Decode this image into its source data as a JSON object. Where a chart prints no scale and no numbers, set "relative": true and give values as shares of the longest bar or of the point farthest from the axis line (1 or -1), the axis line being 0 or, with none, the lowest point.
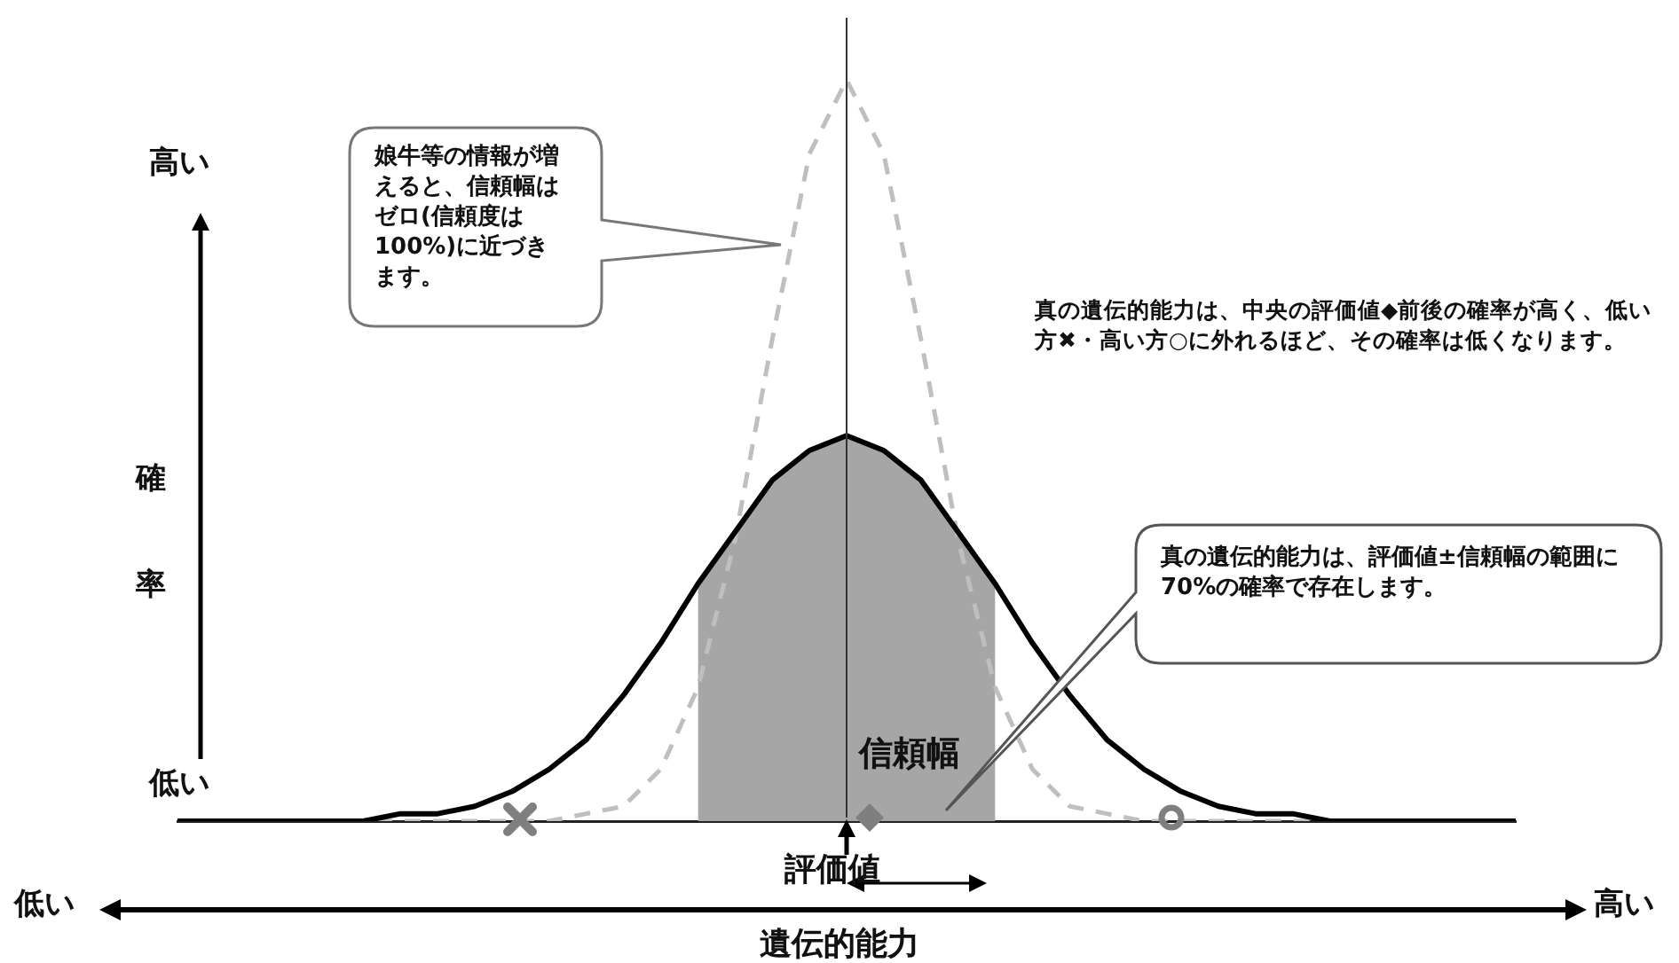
{
  "chart_data": {
    "type": "line",
    "relative": true,
    "xlabel": "遺伝的能力",
    "ylabel": "確率",
    "legend": false,
    "grid": false,
    "marker": "none",
    "categories": [
      null,
      null,
      null,
      null,
      null,
      null,
      null,
      null,
      null,
      null,
      null,
      null,
      null,
      null,
      null,
      null,
      null,
      null,
      null,
      null,
      null,
      null,
      null,
      null,
      null,
      null,
      null,
      null,
      null,
      null,
      null,
      null,
      null,
      null,
      null,
      null,
      null
    ],
    "series": [
      {
        "type": "area",
        "color": "#a6a6a6",
        "values": [
          null,
          null,
          null,
          null,
          null,
          null,
          null,
          null,
          null,
          null,
          null,
          null,
          null,
          null,
          0.32,
          0.39,
          0.46,
          0.5,
          0.52,
          0.5,
          0.46,
          0.39,
          0.32,
          null,
          null,
          null,
          null,
          null,
          null,
          null,
          null,
          null,
          null,
          null,
          null,
          null,
          null
        ]
      },
      {
        "type": "line",
        "color": "#000000",
        "line_style": "solid",
        "values": [
          0,
          0,
          0,
          0,
          0,
          0,
          0.01,
          0.01,
          0.02,
          0.04,
          0.07,
          0.11,
          0.17,
          0.24,
          0.32,
          0.39,
          0.46,
          0.5,
          0.52,
          0.5,
          0.46,
          0.39,
          0.32,
          0.24,
          0.17,
          0.11,
          0.07,
          0.04,
          0.02,
          0.01,
          0.01,
          0,
          0,
          0,
          0,
          0,
          0
        ]
      },
      {
        "type": "line",
        "color": "#bfbfbf",
        "line_style": "dashed",
        "values": [
          0,
          0,
          0,
          0,
          0,
          0,
          0,
          0,
          0,
          0,
          0,
          0.01,
          0.02,
          0.07,
          0.18,
          0.38,
          0.65,
          0.9,
          1,
          0.9,
          0.65,
          0.38,
          0.18,
          0.07,
          0.02,
          0.01,
          0,
          0,
          0,
          0,
          0,
          0,
          0,
          0,
          0,
          0,
          0
        ]
      }
    ],
    "annotations": [
      "娘牛等の情報が増えると、信頼幅はゼロ(信頼度は100%)に近づきます。",
      "真の遺伝的能力は、中央の評価値◆前後の確率が高く、低い方✖・高い方○に外れるほど、その確率は低くなります。",
      "真の遺伝的能力は、評価値±信頼幅の範囲に70%の確率で存在します。",
      "信頼幅",
      "評価値",
      "高い",
      "低い",
      "低い",
      "高い"
    ]
  }
}
